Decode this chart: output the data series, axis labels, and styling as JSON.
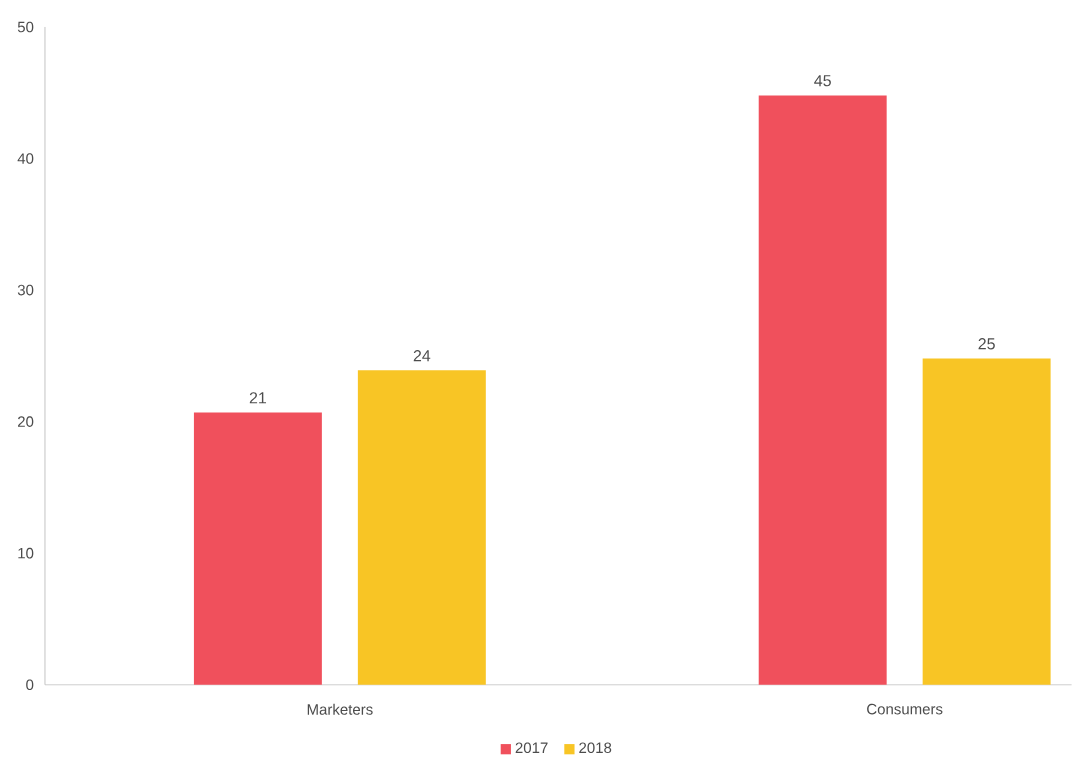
{
  "chart_data": {
    "type": "bar",
    "categories": [
      "Marketers",
      "Consumers"
    ],
    "series": [
      {
        "name": "2017",
        "color": "#f0505c",
        "values": [
          20.7,
          44.8
        ],
        "value_labels": [
          "21",
          "45"
        ]
      },
      {
        "name": "2018",
        "color": "#f8c525",
        "values": [
          23.9,
          24.8
        ],
        "value_labels": [
          "24",
          "25"
        ]
      }
    ],
    "ylim": [
      0,
      50
    ],
    "yticks": [
      0,
      10,
      20,
      30,
      40,
      50
    ],
    "grid": false,
    "legend": "bottom"
  }
}
